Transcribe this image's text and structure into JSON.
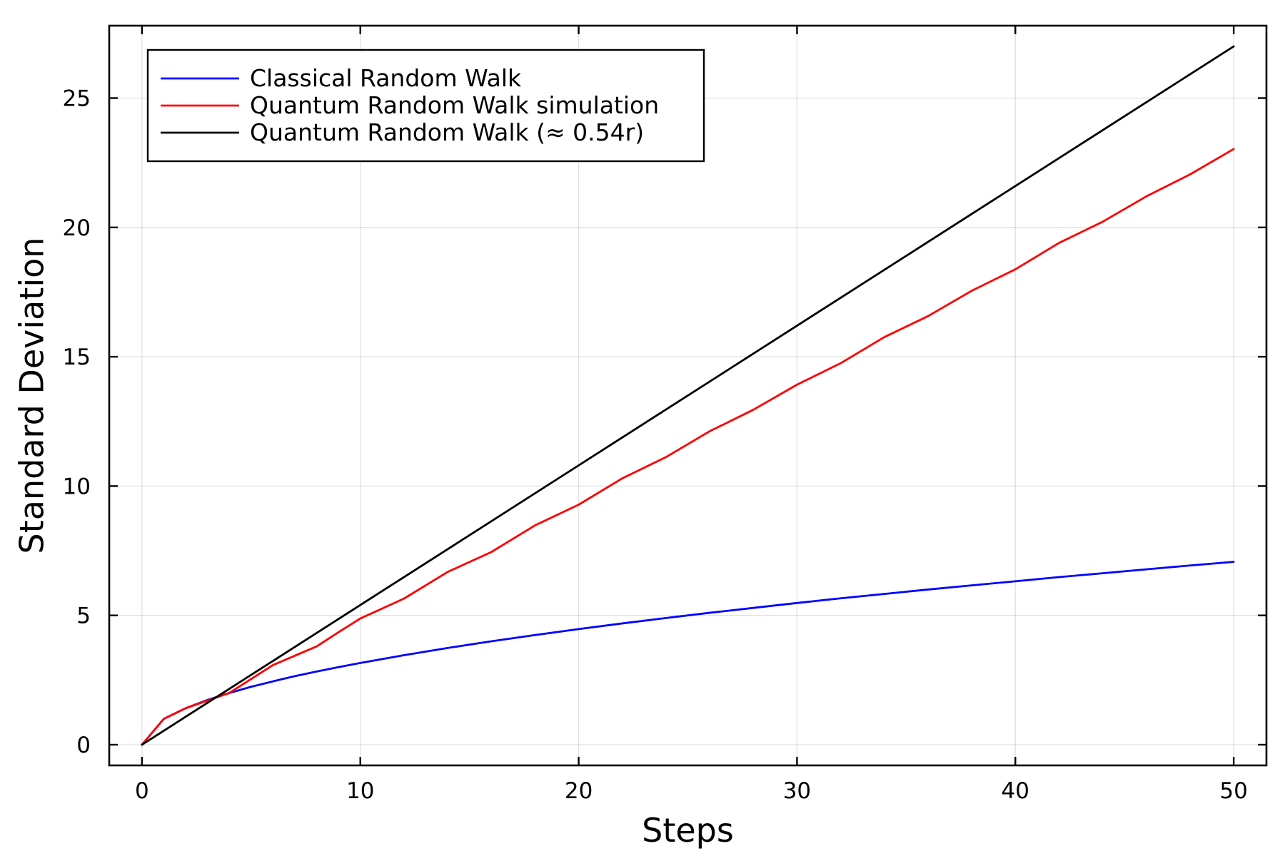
{
  "chart_data": {
    "type": "line",
    "title": "",
    "xlabel": "Steps",
    "ylabel": "Standard Deviation",
    "xlim": [
      -1.5,
      51.5
    ],
    "ylim": [
      -0.8,
      27.8
    ],
    "xticks": [
      0,
      10,
      20,
      30,
      40,
      50
    ],
    "xtick_labels": [
      "0",
      "10",
      "20",
      "30",
      "40",
      "50"
    ],
    "yticks": [
      0,
      5,
      10,
      15,
      20,
      25
    ],
    "ytick_labels": [
      "0",
      "5",
      "10",
      "15",
      "20",
      "25"
    ],
    "grid": true,
    "legend_position": "top-left",
    "series": [
      {
        "name": "Classical Random Walk",
        "color": "#0000ff",
        "x": [
          0,
          1,
          2,
          3,
          4,
          5,
          6,
          7,
          8,
          9,
          10,
          12,
          14,
          16,
          18,
          20,
          22,
          24,
          26,
          28,
          30,
          32,
          34,
          36,
          38,
          40,
          42,
          44,
          46,
          48,
          50
        ],
        "y": [
          0,
          1.0,
          1.41,
          1.73,
          2.0,
          2.24,
          2.45,
          2.65,
          2.83,
          3.0,
          3.16,
          3.46,
          3.74,
          4.0,
          4.24,
          4.47,
          4.69,
          4.9,
          5.1,
          5.29,
          5.48,
          5.66,
          5.83,
          6.0,
          6.16,
          6.32,
          6.48,
          6.63,
          6.78,
          6.93,
          7.07
        ]
      },
      {
        "name": "Quantum Random Walk simulation",
        "color": "#ff0000",
        "x": [
          0,
          1,
          2,
          4,
          6,
          8,
          9,
          10,
          12,
          14,
          16,
          18,
          20,
          22,
          24,
          26,
          28,
          30,
          32,
          34,
          36,
          38,
          40,
          42,
          44,
          46,
          48,
          50
        ],
        "y": [
          0,
          1.0,
          1.41,
          2.0,
          3.08,
          3.8,
          4.35,
          4.88,
          5.65,
          6.68,
          7.45,
          8.48,
          9.28,
          10.3,
          11.12,
          12.12,
          12.95,
          13.92,
          14.75,
          15.76,
          16.57,
          17.55,
          18.38,
          19.4,
          20.22,
          21.2,
          22.05,
          23.03
        ]
      },
      {
        "name": "Quantum Random Walk (≈ 0.54r)",
        "color": "#000000",
        "x": [
          0,
          50
        ],
        "y": [
          0,
          27.0
        ]
      }
    ]
  }
}
